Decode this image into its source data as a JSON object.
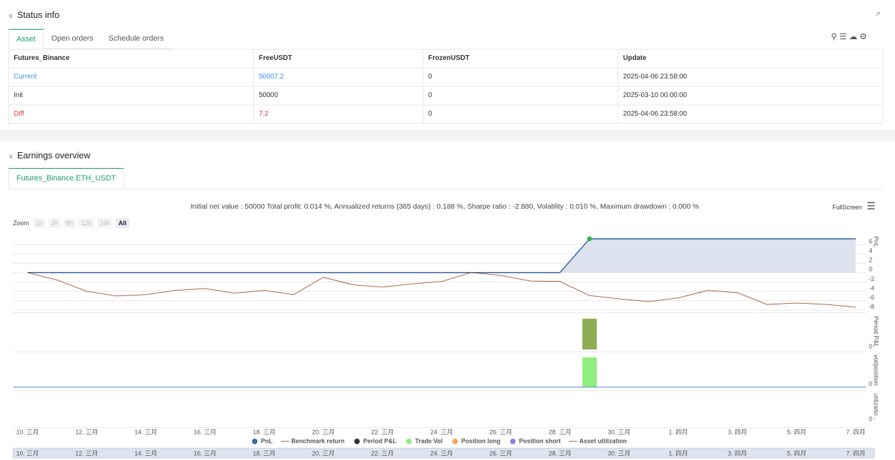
{
  "status_info": {
    "title": "Status info",
    "tabs": [
      "Asset",
      "Open orders",
      "Schedule orders"
    ],
    "table": {
      "header": [
        "Futures_Binance",
        "FreeUSDT",
        "FrozenUSDT",
        "Update"
      ],
      "rows": [
        [
          "Current",
          "50007.2",
          "0",
          "2025-04-06 23:58:00"
        ],
        [
          "Init",
          "50000",
          "0",
          "2025-03-10 00:00:00"
        ],
        [
          "Diff",
          "7.2",
          "0",
          "2025-04-06 23:58:00"
        ]
      ]
    }
  },
  "earnings_overview": {
    "title": "Earnings overview",
    "tabs": [
      "Futures_Binance.ETH_USDT"
    ],
    "summary": "Initial net value : 50000 Total profit: 0.014 %, Annualized returns (365 days) : 0.188 %, Sharpe ratio : -2.880, Volatility : 0.010 %, Maximum drawdown : 0.000 %",
    "fullscreen": "FullScreen",
    "zoom_label": "Zoom",
    "zoom_buttons": [
      "1h",
      "3h",
      "8h",
      "12h",
      "24h",
      "All"
    ],
    "categories": [
      "10. 三月",
      null,
      "12. 三月",
      null,
      "14. 三月",
      null,
      "16. 三月",
      null,
      "18. 三月",
      null,
      "20. 三月",
      null,
      "22. 三月",
      null,
      "24. 三月",
      null,
      "26. 三月",
      null,
      "28. 三月",
      null,
      "30. 三月",
      null,
      "1. 四月",
      null,
      "3. 四月",
      null,
      "5. 四月",
      null,
      "7. 四月"
    ],
    "legend": [
      {
        "name": "PnL",
        "color": "#3d6ca8",
        "symbol": "circle"
      },
      {
        "name": "Benchmark return",
        "color": "#a0522d",
        "symbol": "line"
      },
      {
        "name": "Period P&L",
        "color": "#333333",
        "symbol": "circle"
      },
      {
        "name": "Trade Vol",
        "color": "#90ee7e",
        "symbol": "circle"
      },
      {
        "name": "Position long",
        "color": "#f7a35c",
        "symbol": "circle"
      },
      {
        "name": "Position short",
        "color": "#8085e9",
        "symbol": "circle"
      },
      {
        "name": "Asset utilization",
        "color": "#8b5a2b",
        "symbol": "line"
      }
    ]
  },
  "chart_data": [
    {
      "type": "line",
      "y_label": "PnL",
      "ylim": [
        -8.4,
        8.2
      ],
      "yticks": [
        6,
        4,
        2,
        0,
        -2,
        -4,
        -6,
        -8
      ],
      "grid": true,
      "series": [
        {
          "color": "#3d6ca8",
          "area_color": "#dce3ee",
          "values": [
            0,
            0,
            0,
            0,
            0,
            0,
            0,
            0,
            0,
            0,
            0,
            0,
            0,
            0,
            0,
            0,
            0,
            0,
            0,
            7.2,
            7.2,
            7.2,
            7.2,
            7.2,
            7.2,
            7.2,
            7.2,
            7.2,
            7.2
          ]
        },
        {
          "color": "#a0522d",
          "values": [
            0,
            -1.6,
            -4.0,
            -5.0,
            -4.7,
            -3.8,
            -3.4,
            -4.4,
            -3.8,
            -4.7,
            -1.0,
            -2.6,
            -3.1,
            -2.4,
            -1.9,
            0,
            -0.6,
            -1.8,
            -1.9,
            -4.9,
            -5.6,
            -6.2,
            -5.4,
            -3.8,
            -4.3,
            -6.8,
            -6.5,
            -6.8,
            -7.4
          ]
        }
      ]
    },
    {
      "type": "bar",
      "y_label": "Period P&L",
      "ylim": [
        -0.4,
        8.3
      ],
      "yticks": [
        0
      ],
      "series": [
        {
          "color": "#8fad54",
          "values": [
            null,
            null,
            null,
            null,
            null,
            null,
            null,
            null,
            null,
            null,
            null,
            null,
            null,
            null,
            null,
            null,
            null,
            null,
            null,
            7.2,
            null,
            null,
            null,
            null,
            null,
            null,
            null,
            null,
            null
          ]
        }
      ]
    },
    {
      "type": "bar",
      "y_label": "vol/position",
      "ylim": [
        -0.09,
        1.16
      ],
      "yticks": [
        0
      ],
      "series": [
        {
          "color": "#90ee7e",
          "values": [
            null,
            null,
            null,
            null,
            null,
            null,
            null,
            null,
            null,
            null,
            null,
            null,
            null,
            null,
            null,
            null,
            null,
            null,
            null,
            1,
            null,
            null,
            null,
            null,
            null,
            null,
            null,
            null,
            null
          ]
        }
      ]
    },
    {
      "type": "line",
      "y_label": "utilizatio...",
      "ylim": [
        -0.15,
        1
      ],
      "yticks": [
        0
      ],
      "series": []
    }
  ]
}
